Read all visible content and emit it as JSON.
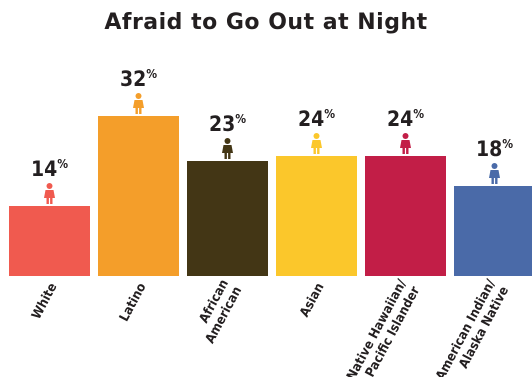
{
  "chart_data": {
    "type": "bar",
    "title": "Afraid to Go Out at Night",
    "unit": "%",
    "categories": [
      [
        "White"
      ],
      [
        "Latino"
      ],
      [
        "African",
        "American"
      ],
      [
        "Asian"
      ],
      [
        "Native Hawaiian/",
        "Pacific Islander"
      ],
      [
        "American Indian/",
        "Alaska Native"
      ]
    ],
    "values": [
      14,
      32,
      23,
      24,
      24,
      18
    ],
    "colors": [
      "#f05a4f",
      "#f49e2a",
      "#433615",
      "#fbc72b",
      "#c21e47",
      "#4a6aa8"
    ],
    "ylim": [
      0,
      32
    ],
    "icon": "person-icon"
  }
}
